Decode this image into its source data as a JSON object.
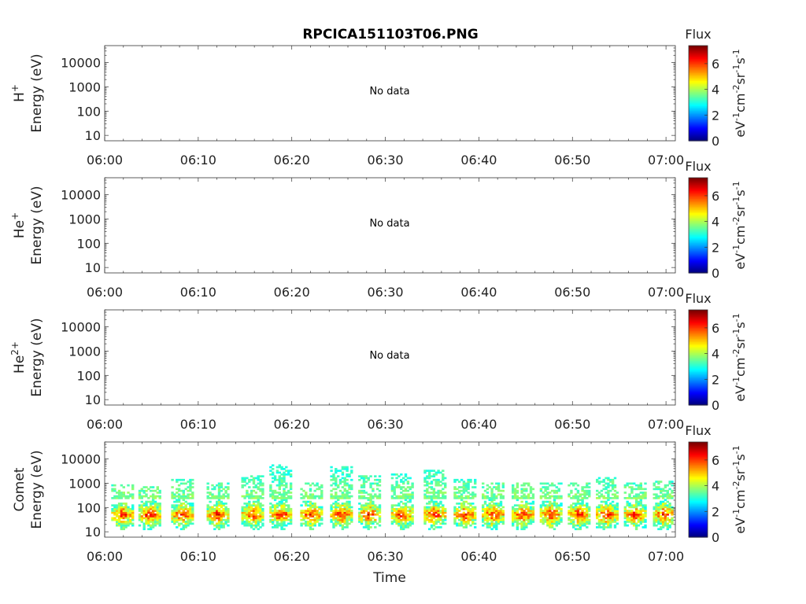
{
  "title": "RPCICA151103T06.PNG",
  "xlabel": "Time",
  "x_ticks": [
    "06:00",
    "06:10",
    "06:20",
    "06:30",
    "06:40",
    "06:50",
    "07:00"
  ],
  "y_ticks": [
    "10",
    "100",
    "1000",
    "10000"
  ],
  "colorbar": {
    "title": "Flux",
    "ticks": [
      "0",
      "2",
      "4",
      "6"
    ],
    "unit_parts": [
      "eV",
      "-1",
      "cm",
      "-2",
      "sr",
      "-1",
      "s",
      "-1"
    ],
    "range": [
      0,
      7.4
    ],
    "colormap": "jet"
  },
  "panels": [
    {
      "species": "H",
      "charge": "+",
      "energy_label": "Energy (eV)",
      "message": "No data"
    },
    {
      "species": "He",
      "charge": "+",
      "energy_label": "Energy (eV)",
      "message": "No data"
    },
    {
      "species": "He",
      "charge": "2+",
      "energy_label": "Energy (eV)",
      "message": "No data"
    },
    {
      "species": "Comet",
      "charge": "",
      "energy_label": "Energy (eV)",
      "message": ""
    }
  ],
  "chart_data": {
    "type": "heatmap",
    "title": "RPCICA151103T06.PNG",
    "xlabel": "Time",
    "x_range": [
      "06:00",
      "07:01"
    ],
    "y_scale": "log",
    "y_range": [
      6,
      50000
    ],
    "colorbar_range": [
      0,
      7.4
    ],
    "colorbar_title": "Flux",
    "colormap": "jet",
    "series": [
      {
        "name": "Comet",
        "bursts_start_minutes": [
          0.7,
          3.6,
          7.1,
          10.9,
          14.6,
          17.6,
          20.9,
          24.1,
          27.1,
          30.6,
          34.1,
          37.3,
          40.3,
          43.5,
          46.5,
          49.5,
          52.5,
          55.5,
          58.6
        ],
        "core_energy_eV": [
          40,
          60
        ],
        "core_flux": 7.0,
        "max_energy_eV": [
          800,
          700,
          1500,
          900,
          1800,
          5500,
          1000,
          4500,
          1800,
          2500,
          3500,
          1500,
          900,
          900,
          1000,
          900,
          1600,
          1000,
          1200
        ]
      },
      {
        "name": "H+",
        "values": []
      },
      {
        "name": "He+",
        "values": []
      },
      {
        "name": "He2+",
        "values": []
      }
    ]
  }
}
